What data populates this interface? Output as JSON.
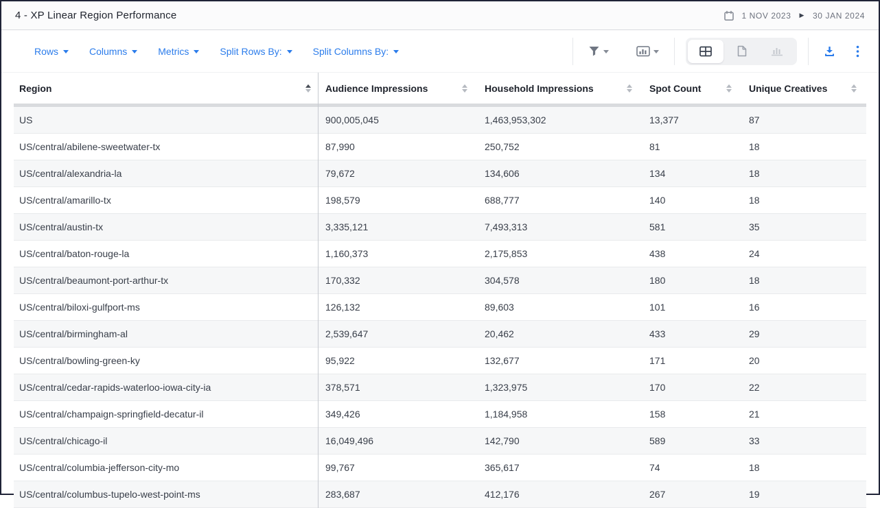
{
  "window": {
    "title": "4 - XP Linear Region Performance",
    "date_range": {
      "start": "1 NOV 2023",
      "end": "30 JAN 2024"
    }
  },
  "toolbar": {
    "pivots": [
      {
        "label": "Rows"
      },
      {
        "label": "Columns"
      },
      {
        "label": "Metrics"
      },
      {
        "label": "Split Rows By:"
      },
      {
        "label": "Split Columns By:"
      }
    ],
    "icons": [
      "filter-icon",
      "chart-type-icon",
      "table-view-icon",
      "document-view-icon",
      "chart-view-icon",
      "download-icon",
      "kebab-icon"
    ],
    "view_toggle": {
      "options": [
        "table",
        "document",
        "chart"
      ],
      "selected": "table"
    }
  },
  "table": {
    "columns": [
      {
        "label": "Region",
        "sort": "asc"
      },
      {
        "label": "Audience Impressions",
        "sort": "none"
      },
      {
        "label": "Household Impressions",
        "sort": "none"
      },
      {
        "label": "Spot Count",
        "sort": "none"
      },
      {
        "label": "Unique Creatives",
        "sort": "none"
      }
    ],
    "rows": [
      [
        "US",
        "900,005,045",
        "1,463,953,302",
        "13,377",
        "87"
      ],
      [
        "US/central/abilene-sweetwater-tx",
        "87,990",
        "250,752",
        "81",
        "18"
      ],
      [
        "US/central/alexandria-la",
        "79,672",
        "134,606",
        "134",
        "18"
      ],
      [
        "US/central/amarillo-tx",
        "198,579",
        "688,777",
        "140",
        "18"
      ],
      [
        "US/central/austin-tx",
        "3,335,121",
        "7,493,313",
        "581",
        "35"
      ],
      [
        "US/central/baton-rouge-la",
        "1,160,373",
        "2,175,853",
        "438",
        "24"
      ],
      [
        "US/central/beaumont-port-arthur-tx",
        "170,332",
        "304,578",
        "180",
        "18"
      ],
      [
        "US/central/biloxi-gulfport-ms",
        "126,132",
        "89,603",
        "101",
        "16"
      ],
      [
        "US/central/birmingham-al",
        "2,539,647",
        "20,462",
        "433",
        "29"
      ],
      [
        "US/central/bowling-green-ky",
        "95,922",
        "132,677",
        "171",
        "20"
      ],
      [
        "US/central/cedar-rapids-waterloo-iowa-city-ia",
        "378,571",
        "1,323,975",
        "170",
        "22"
      ],
      [
        "US/central/champaign-springfield-decatur-il",
        "349,426",
        "1,184,958",
        "158",
        "21"
      ],
      [
        "US/central/chicago-il",
        "16,049,496",
        "142,790",
        "589",
        "33"
      ],
      [
        "US/central/columbia-jefferson-city-mo",
        "99,767",
        "365,617",
        "74",
        "18"
      ],
      [
        "US/central/columbus-tupelo-west-point-ms",
        "283,687",
        "412,176",
        "267",
        "19"
      ]
    ]
  },
  "colors": {
    "accent_blue": "#2b7ceb",
    "window_border": "#1f2337",
    "header_text": "#1e222b",
    "cell_text": "#383e49",
    "muted_text": "#6d727e",
    "alt_row_bg": "#f6f7f8",
    "row_border": "#e8eaec",
    "shadow_band": "#d9dbde",
    "segmented_bg": "#f0f1f3"
  }
}
